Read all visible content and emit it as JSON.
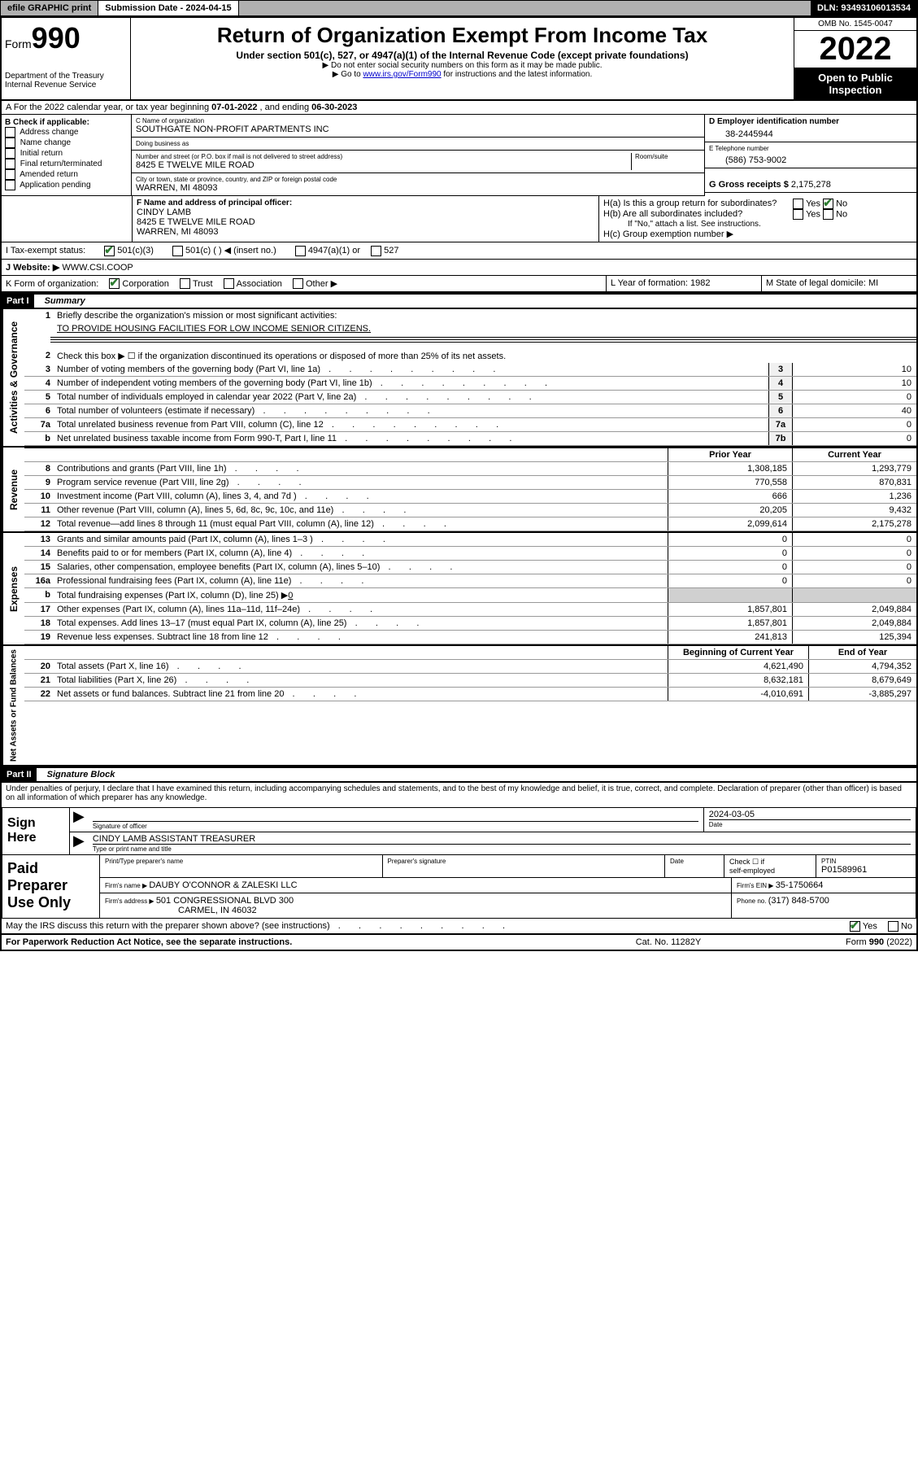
{
  "topbar": {
    "efile": "efile GRAPHIC print",
    "subdate_label": "Submission Date - ",
    "subdate": "2024-04-15",
    "dln_label": "DLN: ",
    "dln": "93493106013534"
  },
  "header": {
    "form_label": "Form",
    "form_num": "990",
    "dept": "Department of the Treasury\nInternal Revenue Service",
    "title": "Return of Organization Exempt From Income Tax",
    "sub": "Under section 501(c), 527, or 4947(a)(1) of the Internal Revenue Code (except private foundations)",
    "note1": "▶ Do not enter social security numbers on this form as it may be made public.",
    "note2_a": "▶ Go to ",
    "note2_link": "www.irs.gov/Form990",
    "note2_b": " for instructions and the latest information.",
    "omb": "OMB No. 1545-0047",
    "year": "2022",
    "opi": "Open to Public Inspection"
  },
  "sectionA": {
    "text_a": "A For the 2022 calendar year, or tax year beginning ",
    "begin": "07-01-2022",
    "text_b": " , and ending ",
    "end": "06-30-2023"
  },
  "blockB": {
    "title": "B Check if applicable:",
    "items": [
      "Address change",
      "Name change",
      "Initial return",
      "Final return/terminated",
      "Amended return",
      "Application pending"
    ]
  },
  "blockC": {
    "name_label": "C Name of organization",
    "name": "SOUTHGATE NON-PROFIT APARTMENTS INC",
    "dba_label": "Doing business as",
    "dba": "",
    "addr_label": "Number and street (or P.O. box if mail is not delivered to street address)",
    "room_label": "Room/suite",
    "addr": "8425 E TWELVE MILE ROAD",
    "city_label": "City or town, state or province, country, and ZIP or foreign postal code",
    "city": "WARREN, MI  48093"
  },
  "blockD": {
    "label": "D Employer identification number",
    "val": "38-2445944"
  },
  "blockE": {
    "label": "E Telephone number",
    "val": "(586) 753-9002"
  },
  "blockG": {
    "label": "G Gross receipts $ ",
    "val": "2,175,278"
  },
  "blockF": {
    "label": "F Name and address of principal officer:",
    "name": "CINDY LAMB",
    "addr1": "8425 E TWELVE MILE ROAD",
    "addr2": "WARREN, MI  48093"
  },
  "blockH": {
    "ha": "H(a)  Is this a group return for subordinates?",
    "hb": "H(b)  Are all subordinates included?",
    "hb_note": "If \"No,\" attach a list. See instructions.",
    "hc": "H(c)  Group exemption number ▶",
    "yes": "Yes",
    "no": "No"
  },
  "rowI": {
    "label": "I   Tax-exempt status:",
    "opts": [
      "501(c)(3)",
      "501(c) (  ) ◀ (insert no.)",
      "4947(a)(1) or",
      "527"
    ]
  },
  "rowJ": {
    "label": "J   Website: ▶ ",
    "val": "WWW.CSI.COOP"
  },
  "rowK": {
    "label": "K Form of organization:",
    "opts": [
      "Corporation",
      "Trust",
      "Association",
      "Other ▶"
    ]
  },
  "rowL": {
    "label": "L Year of formation: ",
    "val": "1982"
  },
  "rowM": {
    "label": "M State of legal domicile: ",
    "val": "MI"
  },
  "part1": {
    "num": "Part I",
    "title": "Summary"
  },
  "summary": {
    "s1": {
      "tab": "Activities & Governance",
      "l1_pre": "Briefly describe the organization's mission or most significant activities:",
      "l1_val": "TO PROVIDE HOUSING FACILITIES FOR LOW INCOME SENIOR CITIZENS.",
      "l2": "Check this box ▶ ☐  if the organization discontinued its operations or disposed of more than 25% of its net assets.",
      "rows": [
        {
          "n": "3",
          "d": "Number of voting members of the governing body (Part VI, line 1a)",
          "box": "3",
          "v": "10"
        },
        {
          "n": "4",
          "d": "Number of independent voting members of the governing body (Part VI, line 1b)",
          "box": "4",
          "v": "10"
        },
        {
          "n": "5",
          "d": "Total number of individuals employed in calendar year 2022 (Part V, line 2a)",
          "box": "5",
          "v": "0"
        },
        {
          "n": "6",
          "d": "Total number of volunteers (estimate if necessary)",
          "box": "6",
          "v": "40"
        },
        {
          "n": "7a",
          "d": "Total unrelated business revenue from Part VIII, column (C), line 12",
          "box": "7a",
          "v": "0"
        },
        {
          "n": "b",
          "d": "Net unrelated business taxable income from Form 990-T, Part I, line 11",
          "box": "7b",
          "v": "0"
        }
      ]
    },
    "hdr_prior": "Prior Year",
    "hdr_curr": "Current Year",
    "s2": {
      "tab": "Revenue",
      "rows": [
        {
          "n": "8",
          "d": "Contributions and grants (Part VIII, line 1h)",
          "p": "1,308,185",
          "c": "1,293,779"
        },
        {
          "n": "9",
          "d": "Program service revenue (Part VIII, line 2g)",
          "p": "770,558",
          "c": "870,831"
        },
        {
          "n": "10",
          "d": "Investment income (Part VIII, column (A), lines 3, 4, and 7d )",
          "p": "666",
          "c": "1,236"
        },
        {
          "n": "11",
          "d": "Other revenue (Part VIII, column (A), lines 5, 6d, 8c, 9c, 10c, and 11e)",
          "p": "20,205",
          "c": "9,432"
        },
        {
          "n": "12",
          "d": "Total revenue—add lines 8 through 11 (must equal Part VIII, column (A), line 12)",
          "p": "2,099,614",
          "c": "2,175,278"
        }
      ]
    },
    "s3": {
      "tab": "Expenses",
      "rows": [
        {
          "n": "13",
          "d": "Grants and similar amounts paid (Part IX, column (A), lines 1–3 )",
          "p": "0",
          "c": "0"
        },
        {
          "n": "14",
          "d": "Benefits paid to or for members (Part IX, column (A), line 4)",
          "p": "0",
          "c": "0"
        },
        {
          "n": "15",
          "d": "Salaries, other compensation, employee benefits (Part IX, column (A), lines 5–10)",
          "p": "0",
          "c": "0"
        },
        {
          "n": "16a",
          "d": "Professional fundraising fees (Part IX, column (A), line 11e)",
          "p": "0",
          "c": "0"
        }
      ],
      "l16b": "Total fundraising expenses (Part IX, column (D), line 25) ▶",
      "l16b_val": "0",
      "rows2": [
        {
          "n": "17",
          "d": "Other expenses (Part IX, column (A), lines 11a–11d, 11f–24e)",
          "p": "1,857,801",
          "c": "2,049,884"
        },
        {
          "n": "18",
          "d": "Total expenses. Add lines 13–17 (must equal Part IX, column (A), line 25)",
          "p": "1,857,801",
          "c": "2,049,884"
        },
        {
          "n": "19",
          "d": "Revenue less expenses. Subtract line 18 from line 12",
          "p": "241,813",
          "c": "125,394"
        }
      ]
    },
    "hdr_begin": "Beginning of Current Year",
    "hdr_end": "End of Year",
    "s4": {
      "tab": "Net Assets or Fund Balances",
      "rows": [
        {
          "n": "20",
          "d": "Total assets (Part X, line 16)",
          "p": "4,621,490",
          "c": "4,794,352"
        },
        {
          "n": "21",
          "d": "Total liabilities (Part X, line 26)",
          "p": "8,632,181",
          "c": "8,679,649"
        },
        {
          "n": "22",
          "d": "Net assets or fund balances. Subtract line 21 from line 20",
          "p": "-4,010,691",
          "c": "-3,885,297"
        }
      ]
    }
  },
  "part2": {
    "num": "Part II",
    "title": "Signature Block"
  },
  "sig": {
    "decl": "Under penalties of perjury, I declare that I have examined this return, including accompanying schedules and statements, and to the best of my knowledge and belief, it is true, correct, and complete. Declaration of preparer (other than officer) is based on all information of which preparer has any knowledge.",
    "signhere": "Sign Here",
    "sig_officer_lbl": "Signature of officer",
    "date_lbl": "Date",
    "date_val": "2024-03-05",
    "name_line": "CINDY LAMB  ASSISTANT TREASURER",
    "name_lbl": "Type or print name and title"
  },
  "paid": {
    "left": "Paid Preparer Use Only",
    "h1": "Print/Type preparer's name",
    "h2": "Preparer's signature",
    "h3": "Date",
    "h4a": "Check ☐ if",
    "h4b": "self-employed",
    "h5": "PTIN",
    "ptin": "P01589961",
    "firm_lbl": "Firm's name    ▶ ",
    "firm": "DAUBY O'CONNOR & ZALESKI LLC",
    "ein_lbl": "Firm's EIN ▶ ",
    "ein": "35-1750664",
    "addr_lbl": "Firm's address ▶ ",
    "addr1": "501 CONGRESSIONAL BLVD 300",
    "addr2": "CARMEL, IN  46032",
    "phone_lbl": "Phone no. ",
    "phone": "(317) 848-5700"
  },
  "discuss": {
    "q": "May the IRS discuss this return with the preparer shown above? (see instructions)",
    "yes": "Yes",
    "no": "No"
  },
  "footer": {
    "left": "For Paperwork Reduction Act Notice, see the separate instructions.",
    "mid": "Cat. No. 11282Y",
    "right_a": "Form ",
    "right_b": "990",
    "right_c": " (2022)"
  }
}
